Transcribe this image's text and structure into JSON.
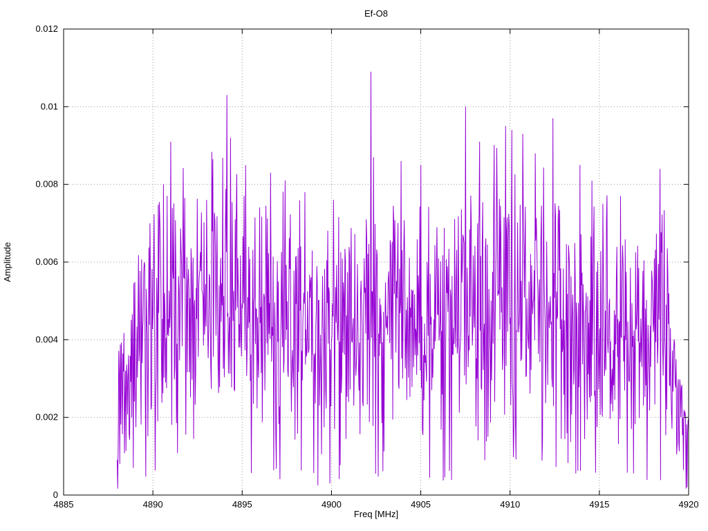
{
  "chart_data": {
    "type": "line",
    "title": "Ef-O8",
    "xlabel": "Freq [MHz]",
    "ylabel": "Amplitude",
    "xlim": [
      4885,
      4920
    ],
    "ylim": [
      0,
      0.012
    ],
    "xticks": {
      "values": [
        4885,
        4890,
        4895,
        4900,
        4905,
        4910,
        4915,
        4920
      ],
      "labels": [
        "4885",
        "4890",
        "4895",
        "4900",
        "4905",
        "4910",
        "4915",
        "4920"
      ]
    },
    "yticks": {
      "values": [
        0,
        0.002,
        0.004,
        0.006,
        0.008,
        0.01,
        0.012
      ],
      "labels": [
        "0",
        "0.002",
        "0.004",
        "0.006",
        "0.008",
        "0.01",
        "0.012"
      ]
    },
    "grid": true,
    "legend": "none",
    "line_color": "#9400d3",
    "grid_color": "#9a9a9a",
    "border_color": "#000000",
    "background": "#ffffff",
    "signal": {
      "description": "dense noisy amplitude spectrum between 4888 and 4920 MHz, mean ~0.0045, spikes to ~0.011",
      "x_start": 4888.0,
      "x_end": 4920.0,
      "n_points": 1100,
      "seed": 42,
      "noise_min_frac": 0.15,
      "noise_max_frac": 1.7,
      "dip_prob": 0.03,
      "dip_factor": 0.12,
      "spike_prob": 0.015,
      "spike_factor": 1.25,
      "y_min_clamp": 0.0001,
      "y_max_clamp": 0.0112,
      "envelope": [
        [
          4888.0,
          0.0022
        ],
        [
          4888.6,
          0.0032
        ],
        [
          4889.5,
          0.0042
        ],
        [
          4890.5,
          0.0052
        ],
        [
          4892.0,
          0.0051
        ],
        [
          4894.0,
          0.0056
        ],
        [
          4895.5,
          0.005
        ],
        [
          4897.0,
          0.0047
        ],
        [
          4899.0,
          0.0045
        ],
        [
          4901.0,
          0.0048
        ],
        [
          4903.0,
          0.005
        ],
        [
          4905.0,
          0.0047
        ],
        [
          4907.0,
          0.0049
        ],
        [
          4909.0,
          0.0054
        ],
        [
          4911.0,
          0.0055
        ],
        [
          4913.0,
          0.0051
        ],
        [
          4915.0,
          0.0049
        ],
        [
          4917.0,
          0.0048
        ],
        [
          4918.5,
          0.0049
        ],
        [
          4919.2,
          0.003
        ],
        [
          4919.7,
          0.0018
        ],
        [
          4920.0,
          0.0013
        ]
      ],
      "peaks": [
        [
          4888.9,
          0.0007
        ],
        [
          4891.0,
          0.0091
        ],
        [
          4893.0,
          0.0076
        ],
        [
          4894.15,
          0.0103
        ],
        [
          4894.35,
          0.0092
        ],
        [
          4895.1,
          0.0077
        ],
        [
          4896.6,
          0.0083
        ],
        [
          4897.4,
          0.0081
        ],
        [
          4898.5,
          0.0078
        ],
        [
          4899.9,
          0.0003
        ],
        [
          4900.1,
          0.0076
        ],
        [
          4902.2,
          0.0109
        ],
        [
          4902.35,
          0.0087
        ],
        [
          4903.9,
          0.0086
        ],
        [
          4905.0,
          0.0085
        ],
        [
          4905.9,
          0.0069
        ],
        [
          4907.5,
          0.01
        ],
        [
          4908.3,
          0.0091
        ],
        [
          4909.75,
          0.0095
        ],
        [
          4910.1,
          0.0094
        ],
        [
          4910.7,
          0.0093
        ],
        [
          4911.4,
          0.0088
        ],
        [
          4912.4,
          0.0097
        ],
        [
          4913.9,
          0.0085
        ],
        [
          4915.2,
          0.0075
        ],
        [
          4916.2,
          0.0077
        ],
        [
          4918.4,
          0.0084
        ],
        [
          4919.9,
          0.0002
        ]
      ]
    }
  }
}
